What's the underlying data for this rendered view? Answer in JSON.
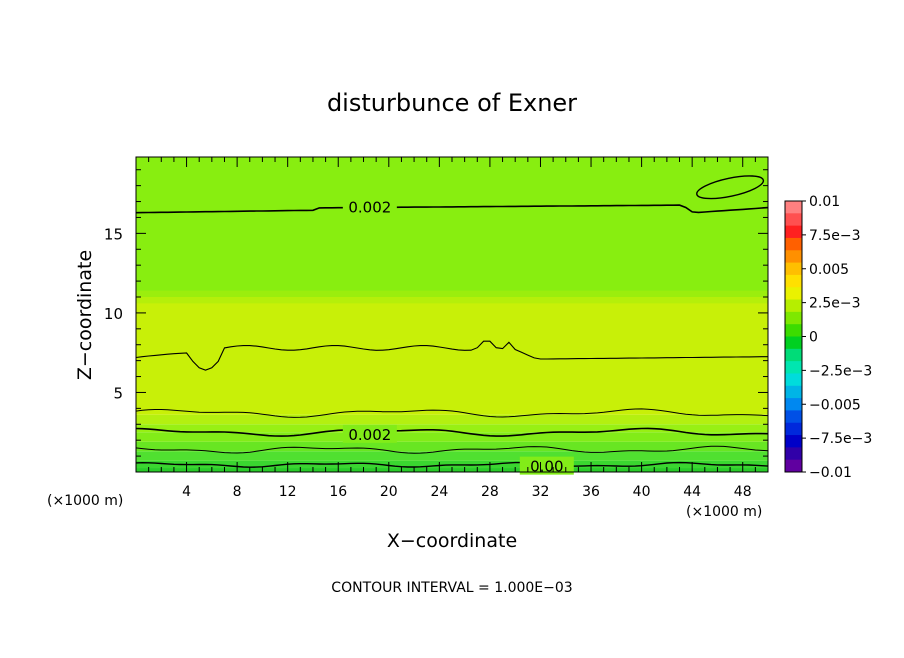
{
  "chart_data": {
    "type": "contour",
    "title": "disturbunce of Exner",
    "xlabel": "X−coordinate",
    "ylabel": "Z−coordinate",
    "x_unit": "(×1000 m)",
    "x_unit_right": "(×1000 m)",
    "footer": "CONTOUR INTERVAL = 1.000E−03",
    "xlim": [
      0,
      50
    ],
    "ylim": [
      0,
      19.8
    ],
    "x_ticks": [
      4,
      8,
      12,
      16,
      20,
      24,
      28,
      32,
      36,
      40,
      44,
      48
    ],
    "x_tick_labels": [
      "4",
      "8",
      "12",
      "16",
      "20",
      "24",
      "28",
      "32",
      "36",
      "40",
      "44",
      "48"
    ],
    "y_ticks": [
      5,
      10,
      15
    ],
    "y_tick_labels": [
      "5",
      "10",
      "15"
    ],
    "contour_interval": 0.001,
    "contour_labels": [
      {
        "text": "0.002",
        "x": 18.5,
        "z": 16.7
      },
      {
        "text": "0.002",
        "x": 18.5,
        "z": 2.4
      },
      {
        "text": "0.00",
        "x": 32.5,
        "z": 0.4
      }
    ],
    "bands": [
      {
        "z": [
          0.0,
          0.25
        ],
        "color": "#2acc2a"
      },
      {
        "z": [
          0.25,
          0.7
        ],
        "color": "#3ad630"
      },
      {
        "z": [
          0.7,
          1.3
        ],
        "color": "#50e030"
      },
      {
        "z": [
          1.3,
          1.9
        ],
        "color": "#68e622"
      },
      {
        "z": [
          1.9,
          2.5
        ],
        "color": "#82ec18"
      },
      {
        "z": [
          2.5,
          3.0
        ],
        "color": "#98f014"
      },
      {
        "z": [
          3.0,
          3.6
        ],
        "color": "#b4f010"
      },
      {
        "z": [
          3.6,
          11.0
        ],
        "color": "#c8f008"
      },
      {
        "z": [
          11.0,
          19.8
        ],
        "color": "#88ee10"
      }
    ],
    "colorbar": {
      "tick_labels": [
        "0.01",
        "7.5e−3",
        "0.005",
        "2.5e−3",
        "0",
        "−2.5e−3",
        "−0.005",
        "−7.5e−3",
        "−0.01"
      ],
      "colors": [
        "#ff8080",
        "#ff5050",
        "#ff2020",
        "#ff6000",
        "#ff9000",
        "#ffbf00",
        "#ffe000",
        "#eaf200",
        "#b6ee00",
        "#7ee800",
        "#3cdc00",
        "#00d020",
        "#00dc78",
        "#00e6b0",
        "#00dcdc",
        "#00b4e6",
        "#0088f0",
        "#0050e6",
        "#0028dc",
        "#0000c8",
        "#3000a8",
        "#6000a0"
      ]
    }
  }
}
